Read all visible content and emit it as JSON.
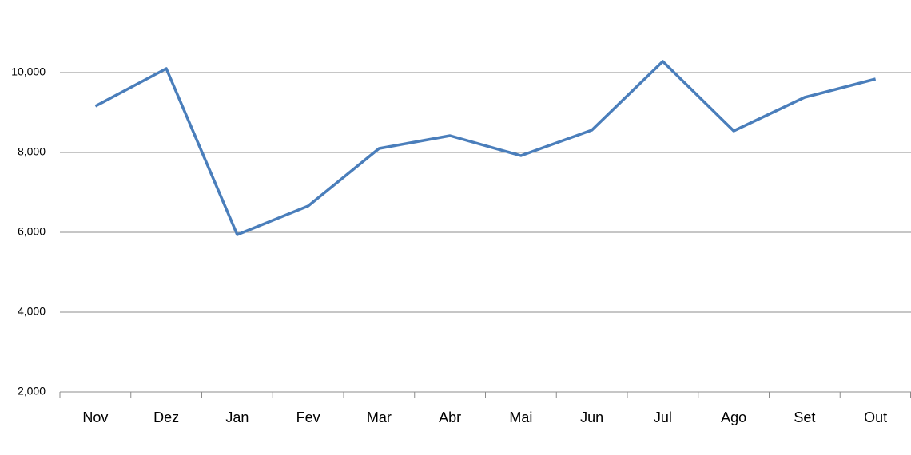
{
  "chart_data": {
    "type": "line",
    "categories": [
      "Nov",
      "Dez",
      "Jan",
      "Fev",
      "Mar",
      "Abr",
      "Mai",
      "Jun",
      "Jul",
      "Ago",
      "Set",
      "Out"
    ],
    "series": [
      {
        "color": "#4a7ebb",
        "values": [
          9160,
          10100,
          5940,
          6660,
          8100,
          8420,
          7920,
          8560,
          10280,
          8540,
          9380,
          9840
        ]
      }
    ],
    "ylim": [
      2000,
      12000
    ],
    "yticks": [
      {
        "value": 2000,
        "label": "2,000"
      },
      {
        "value": 4000,
        "label": "4,000"
      },
      {
        "value": 6000,
        "label": "6,000"
      },
      {
        "value": 8000,
        "label": "8,000"
      },
      {
        "value": 10000,
        "label": "10,000"
      }
    ],
    "grid": true
  }
}
